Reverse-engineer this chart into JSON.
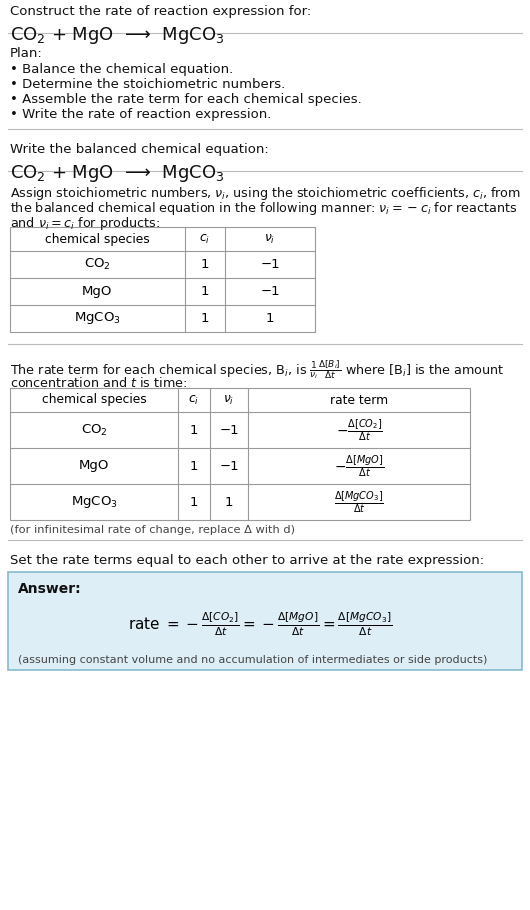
{
  "bg_color": "#ffffff",
  "light_blue_bg": "#ddeef6",
  "section1_title": "Construct the rate of reaction expression for:",
  "section1_equation": "CO$_2$ + MgO  ⟶  MgCO$_3$",
  "plan_title": "Plan:",
  "plan_items": [
    "• Balance the chemical equation.",
    "• Determine the stoichiometric numbers.",
    "• Assemble the rate term for each chemical species.",
    "• Write the rate of reaction expression."
  ],
  "section2_title": "Write the balanced chemical equation:",
  "section2_equation": "CO$_2$ + MgO  ⟶  MgCO$_3$",
  "section3_line1": "Assign stoichiometric numbers, $\\nu_i$, using the stoichiometric coefficients, $c_i$, from",
  "section3_line2": "the balanced chemical equation in the following manner: $\\nu_i = -c_i$ for reactants",
  "section3_line3": "and $\\nu_i = c_i$ for products:",
  "table1_headers": [
    "chemical species",
    "$c_i$",
    "$\\nu_i$"
  ],
  "table1_rows": [
    [
      "CO$_2$",
      "1",
      "−1"
    ],
    [
      "MgO",
      "1",
      "−1"
    ],
    [
      "MgCO$_3$",
      "1",
      "1"
    ]
  ],
  "section4_line1": "The rate term for each chemical species, B$_i$, is $\\frac{1}{\\nu_i}\\frac{\\Delta[B_i]}{\\Delta t}$ where [B$_i$] is the amount",
  "section4_line2": "concentration and $t$ is time:",
  "table2_headers": [
    "chemical species",
    "$c_i$",
    "$\\nu_i$",
    "rate term"
  ],
  "table2_rows": [
    [
      "CO$_2$",
      "1",
      "−1",
      "$-\\frac{\\Delta[CO_2]}{\\Delta t}$"
    ],
    [
      "MgO",
      "1",
      "−1",
      "$-\\frac{\\Delta[MgO]}{\\Delta t}$"
    ],
    [
      "MgCO$_3$",
      "1",
      "1",
      "$\\frac{\\Delta[MgCO_3]}{\\Delta t}$"
    ]
  ],
  "infinitesimal_note": "(for infinitesimal rate of change, replace Δ with d)",
  "section5_intro": "Set the rate terms equal to each other to arrive at the rate expression:",
  "answer_label": "Answer:",
  "answer_rate": "rate $= -\\frac{\\Delta[CO_2]}{\\Delta t} = -\\frac{\\Delta[MgO]}{\\Delta t} = \\frac{\\Delta[MgCO_3]}{\\Delta t}$",
  "assumption_note": "(assuming constant volume and no accumulation of intermediates or side products)"
}
